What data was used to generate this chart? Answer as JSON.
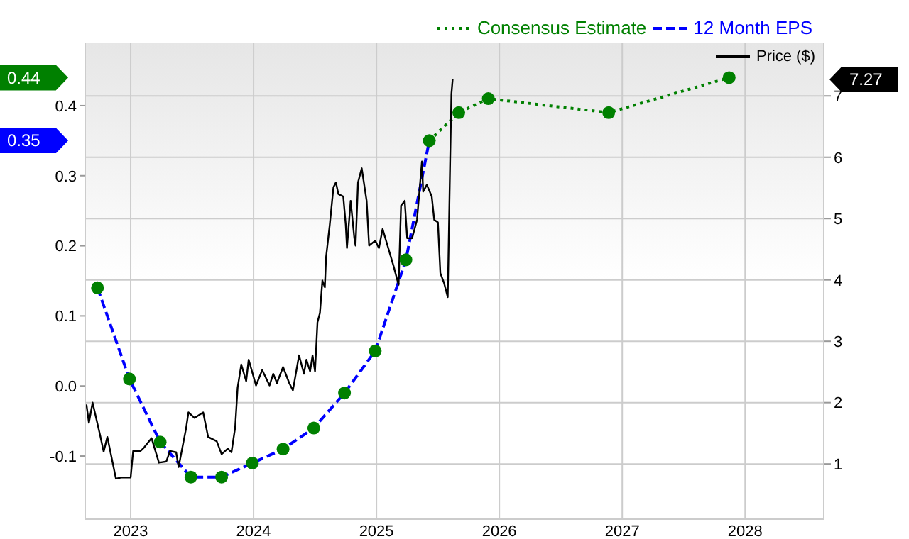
{
  "chart_data": {
    "type": "line",
    "xlim": [
      2022.63,
      2028.64
    ],
    "xticks": [
      2023,
      2024,
      2025,
      2026,
      2027,
      2028
    ],
    "ylim": [
      -0.19,
      0.49
    ],
    "yticks": [
      {
        "value": -0.1,
        "label": "-0.1"
      },
      {
        "value": 0,
        "label": "0.0"
      },
      0.1,
      0.2,
      0.3,
      0.4
    ],
    "y2lim": [
      0.1,
      7.87
    ],
    "y2ticks": [
      1,
      2,
      3,
      4,
      5,
      6,
      7
    ],
    "grid": true,
    "legend": "top right",
    "annotations": [
      "0.44",
      "0.35",
      "7.27"
    ],
    "series": [
      {
        "name": "Consensus Estimate",
        "color": "#008000",
        "line_style": "dotted",
        "marker": "none",
        "x": [
          2025.43,
          2025.67,
          2025.91,
          2026.89,
          2027.87
        ],
        "values": [
          0.35,
          0.39,
          0.41,
          0.39,
          0.44
        ]
      },
      {
        "name": "12 Month EPS",
        "color": "#0000ff",
        "line_style": "dashed",
        "marker": "none",
        "x": [
          2022.73,
          2022.99,
          2023.24,
          2023.49,
          2023.74,
          2023.99,
          2024.24,
          2024.49,
          2024.74,
          2024.99,
          2025.24,
          2025.43
        ],
        "values": [
          0.14,
          0.01,
          -0.08,
          -0.13,
          -0.13,
          -0.11,
          -0.09,
          -0.06,
          -0.01,
          0.05,
          0.18,
          0.35
        ]
      },
      {
        "name": "Price ($)",
        "axis": "y2",
        "color": "#000000",
        "line_style": "solid",
        "marker": "none",
        "x": [
          2022.64,
          2022.66,
          2022.69,
          2022.75,
          2022.78,
          2022.81,
          2022.88,
          2022.93,
          2023.0,
          2023.02,
          2023.08,
          2023.11,
          2023.17,
          2023.23,
          2023.29,
          2023.32,
          2023.37,
          2023.39,
          2023.45,
          2023.47,
          2023.52,
          2023.59,
          2023.63,
          2023.7,
          2023.74,
          2023.79,
          2023.82,
          2023.85,
          2023.87,
          2023.9,
          2023.94,
          2023.96,
          2024.02,
          2024.07,
          2024.13,
          2024.16,
          2024.19,
          2024.24,
          2024.29,
          2024.32,
          2024.37,
          2024.41,
          2024.43,
          2024.46,
          2024.48,
          2024.5,
          2024.52,
          2024.54,
          2024.56,
          2024.58,
          2024.59,
          2024.62,
          2024.65,
          2024.67,
          2024.69,
          2024.73,
          2024.75,
          2024.76,
          2024.79,
          2024.82,
          2024.83,
          2024.85,
          2024.88,
          2024.92,
          2024.94,
          2024.99,
          2025.02,
          2025.05,
          2025.09,
          2025.14,
          2025.18,
          2025.2,
          2025.23,
          2025.25,
          2025.29,
          2025.33,
          2025.37,
          2025.38,
          2025.41,
          2025.45,
          2025.47,
          2025.5,
          2025.52,
          2025.55,
          2025.58,
          2025.6,
          2025.61,
          2025.62
        ],
        "values": [
          1.97,
          1.67,
          2.0,
          1.48,
          1.2,
          1.44,
          0.76,
          0.78,
          0.78,
          1.21,
          1.21,
          1.27,
          1.42,
          1.02,
          1.04,
          1.21,
          1.19,
          0.95,
          1.57,
          1.84,
          1.75,
          1.84,
          1.44,
          1.37,
          1.16,
          1.25,
          1.19,
          1.59,
          2.24,
          2.62,
          2.35,
          2.7,
          2.28,
          2.53,
          2.28,
          2.47,
          2.32,
          2.58,
          2.32,
          2.2,
          2.77,
          2.47,
          2.7,
          2.51,
          2.77,
          2.51,
          3.31,
          3.46,
          3.99,
          3.88,
          4.37,
          4.9,
          5.51,
          5.59,
          5.4,
          5.36,
          4.9,
          4.52,
          5.29,
          4.68,
          4.56,
          5.59,
          5.82,
          5.29,
          4.56,
          4.64,
          4.52,
          4.83,
          4.56,
          4.22,
          3.92,
          5.21,
          5.29,
          4.68,
          4.68,
          4.98,
          5.93,
          5.44,
          5.55,
          5.36,
          4.98,
          4.94,
          4.11,
          3.95,
          3.72,
          5.97,
          7.03,
          7.27
        ]
      },
      {
        "type": "scatter",
        "color": "#008000",
        "marker": "circle",
        "x": [
          2022.73,
          2022.99,
          2023.24,
          2023.49,
          2023.74,
          2023.99,
          2024.24,
          2024.49,
          2024.74,
          2024.99,
          2025.24,
          2025.43,
          2025.67,
          2025.91,
          2026.89,
          2027.87
        ],
        "values": [
          0.14,
          0.01,
          -0.08,
          -0.13,
          -0.13,
          -0.11,
          -0.09,
          -0.06,
          -0.01,
          0.05,
          0.18,
          0.35,
          0.39,
          0.41,
          0.39,
          0.44
        ]
      }
    ]
  }
}
